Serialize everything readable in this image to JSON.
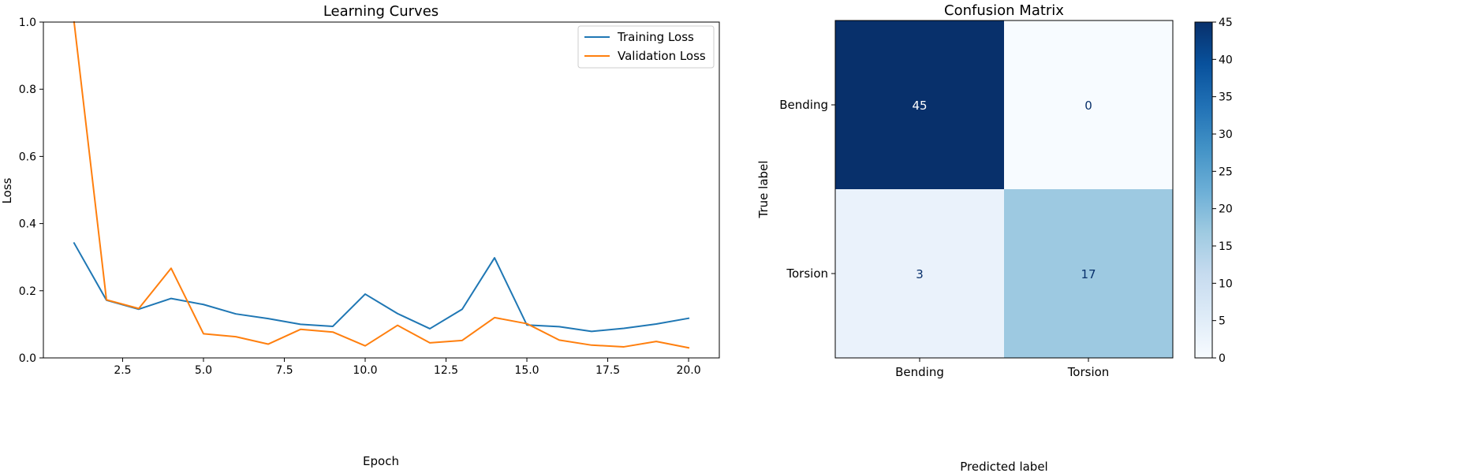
{
  "chart_data": [
    {
      "type": "line",
      "title": "Learning Curves",
      "xlabel": "Epoch",
      "ylabel": "Loss",
      "xlim": [
        0.05,
        20.95
      ],
      "ylim": [
        0.0,
        1.0
      ],
      "xticks": [
        2.5,
        5.0,
        7.5,
        10.0,
        12.5,
        15.0,
        17.5,
        20.0
      ],
      "xtick_labels": [
        "2.5",
        "5.0",
        "7.5",
        "10.0",
        "12.5",
        "15.0",
        "17.5",
        "20.0"
      ],
      "yticks": [
        0.0,
        0.2,
        0.4,
        0.6,
        0.8,
        1.0
      ],
      "ytick_labels": [
        "0.0",
        "0.2",
        "0.4",
        "0.6",
        "0.8",
        "1.0"
      ],
      "grid": false,
      "legend": "upper right",
      "x": [
        1,
        2,
        3,
        4,
        5,
        6,
        7,
        8,
        9,
        10,
        11,
        12,
        13,
        14,
        15,
        16,
        17,
        18,
        19,
        20
      ],
      "series": [
        {
          "name": "Training Loss",
          "color": "#1f77b4",
          "values": [
            0.342,
            0.172,
            0.145,
            0.177,
            0.159,
            0.131,
            0.117,
            0.1,
            0.094,
            0.19,
            0.132,
            0.087,
            0.145,
            0.298,
            0.098,
            0.093,
            0.079,
            0.088,
            0.101,
            0.118
          ]
        },
        {
          "name": "Validation Loss",
          "color": "#ff7f0e",
          "values": [
            1.0,
            0.173,
            0.147,
            0.267,
            0.072,
            0.063,
            0.041,
            0.085,
            0.077,
            0.036,
            0.097,
            0.045,
            0.052,
            0.12,
            0.102,
            0.053,
            0.038,
            0.033,
            0.049,
            0.03
          ]
        }
      ]
    },
    {
      "type": "heatmap",
      "title": "Confusion Matrix",
      "xlabel": "Predicted label",
      "ylabel": "True label",
      "x_categories": [
        "Bending",
        "Torsion"
      ],
      "y_categories": [
        "Bending",
        "Torsion"
      ],
      "values": [
        [
          45,
          0
        ],
        [
          3,
          17
        ]
      ],
      "colormap": "Blues",
      "colorbar": {
        "min": 0,
        "max": 45,
        "ticks": [
          0,
          5,
          10,
          15,
          20,
          25,
          30,
          35,
          40,
          45
        ],
        "tick_labels": [
          "0",
          "5",
          "10",
          "15",
          "20",
          "25",
          "30",
          "35",
          "40",
          "45"
        ]
      }
    }
  ]
}
